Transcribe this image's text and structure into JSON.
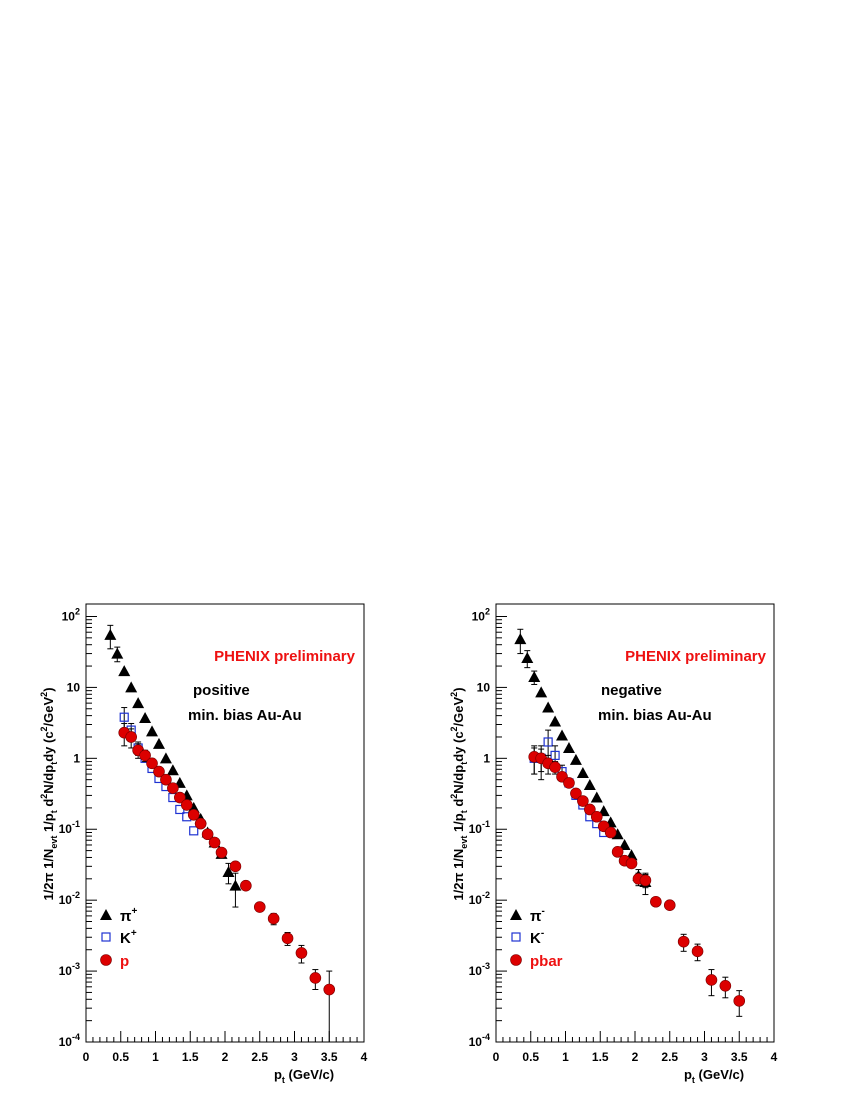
{
  "chart_data": [
    {
      "type": "scatter",
      "xlabel": "p",
      "xlabel_sub": "t",
      "xlabel_unit": "(GeV/c)",
      "xlim": [
        0,
        4
      ],
      "ylim": [
        0.0001,
        150
      ],
      "yscale": "log",
      "x_ticks": [
        "0",
        "0.5",
        "1",
        "1.5",
        "2",
        "2.5",
        "3",
        "3.5",
        "4"
      ],
      "y_ticks": [
        {
          "base": "10",
          "exp": "-4"
        },
        {
          "base": "10",
          "exp": "-3"
        },
        {
          "base": "10",
          "exp": "-2"
        },
        {
          "base": "10",
          "exp": "-1"
        },
        {
          "base": "1",
          "exp": ""
        },
        {
          "base": "10",
          "exp": ""
        },
        {
          "base": "10",
          "exp": "2"
        }
      ],
      "annotations": [
        "PHENIX preliminary",
        "positive",
        "min. bias Au-Au"
      ],
      "legend": [
        "π",
        "K",
        "p"
      ],
      "legend_sup": [
        "+",
        "+",
        ""
      ],
      "series": [
        {
          "name": "π+",
          "marker": "triangle",
          "color": "#000000",
          "x": [
            0.35,
            0.45,
            0.55,
            0.65,
            0.75,
            0.85,
            0.95,
            1.05,
            1.15,
            1.25,
            1.35,
            1.45,
            1.55,
            1.65,
            1.75,
            1.85,
            1.95,
            2.05,
            2.15
          ],
          "y": [
            55,
            30,
            17,
            10,
            6,
            3.7,
            2.4,
            1.6,
            1.0,
            0.68,
            0.45,
            0.3,
            0.2,
            0.14,
            0.09,
            0.065,
            0.045,
            0.025,
            0.016
          ],
          "err": [
            20,
            7,
            0,
            0,
            0,
            0,
            0,
            0,
            0,
            0,
            0,
            0,
            0,
            0,
            0,
            0,
            0,
            0.008,
            0.008
          ]
        },
        {
          "name": "K+",
          "marker": "open-square",
          "color": "#1e32d2",
          "x": [
            0.55,
            0.65,
            0.75,
            0.85,
            0.95,
            1.05,
            1.15,
            1.25,
            1.35,
            1.45,
            1.55
          ],
          "y": [
            3.8,
            2.5,
            1.4,
            1.0,
            0.72,
            0.52,
            0.4,
            0.28,
            0.19,
            0.15,
            0.095
          ],
          "err": [
            1.4,
            0.6,
            0.3,
            0,
            0,
            0,
            0,
            0,
            0,
            0,
            0
          ]
        },
        {
          "name": "p",
          "marker": "circle",
          "color": "#dc0000",
          "x": [
            0.55,
            0.65,
            0.75,
            0.85,
            0.95,
            1.05,
            1.15,
            1.25,
            1.35,
            1.45,
            1.55,
            1.65,
            1.75,
            1.85,
            1.95,
            2.15,
            2.3,
            2.5,
            2.7,
            2.9,
            3.1,
            3.3,
            3.5
          ],
          "y": [
            2.3,
            2.0,
            1.3,
            1.1,
            0.85,
            0.65,
            0.5,
            0.38,
            0.28,
            0.22,
            0.16,
            0.12,
            0.085,
            0.065,
            0.047,
            0.03,
            0.016,
            0.008,
            0.0055,
            0.0029,
            0.0018,
            0.0008,
            0.00055
          ],
          "err": [
            0.8,
            0.6,
            0.3,
            0.2,
            0,
            0,
            0,
            0,
            0,
            0,
            0,
            0,
            0,
            0,
            0,
            0,
            0,
            0.001,
            0.001,
            0.0006,
            0.0005,
            0.00025,
            0.00045
          ]
        }
      ]
    },
    {
      "type": "scatter",
      "xlabel": "p",
      "xlabel_sub": "t",
      "xlabel_unit": "(GeV/c)",
      "xlim": [
        0,
        4
      ],
      "ylim": [
        0.0001,
        150
      ],
      "yscale": "log",
      "x_ticks": [
        "0",
        "0.5",
        "1",
        "1.5",
        "2",
        "2.5",
        "3",
        "3.5",
        "4"
      ],
      "y_ticks": [
        {
          "base": "10",
          "exp": "-4"
        },
        {
          "base": "10",
          "exp": "-3"
        },
        {
          "base": "10",
          "exp": "-2"
        },
        {
          "base": "10",
          "exp": "-1"
        },
        {
          "base": "1",
          "exp": ""
        },
        {
          "base": "10",
          "exp": ""
        },
        {
          "base": "10",
          "exp": "2"
        }
      ],
      "annotations": [
        "PHENIX preliminary",
        "negative",
        "min. bias Au-Au"
      ],
      "legend": [
        "π",
        "K",
        "pbar"
      ],
      "legend_sup": [
        "-",
        "-",
        ""
      ],
      "series": [
        {
          "name": "π-",
          "marker": "triangle",
          "color": "#000000",
          "x": [
            0.35,
            0.45,
            0.55,
            0.65,
            0.75,
            0.85,
            0.95,
            1.05,
            1.15,
            1.25,
            1.35,
            1.45,
            1.55,
            1.65,
            1.75,
            1.85,
            1.95,
            2.05,
            2.15
          ],
          "y": [
            48,
            26,
            14,
            8.5,
            5.2,
            3.3,
            2.1,
            1.4,
            0.95,
            0.62,
            0.42,
            0.28,
            0.18,
            0.125,
            0.085,
            0.06,
            0.043,
            0.022,
            0.018
          ],
          "err": [
            18,
            7,
            3,
            0,
            0,
            0,
            0,
            0,
            0,
            0,
            0,
            0,
            0,
            0,
            0,
            0,
            0,
            0.005,
            0.006
          ]
        },
        {
          "name": "K-",
          "marker": "open-square",
          "color": "#1e32d2",
          "x": [
            0.55,
            0.65,
            0.75,
            0.85,
            0.95,
            1.05,
            1.15,
            1.25,
            1.35,
            1.45,
            1.55
          ],
          "y": [
            1.0,
            1.0,
            1.7,
            1.1,
            0.65,
            0.45,
            0.3,
            0.22,
            0.15,
            0.12,
            0.09
          ],
          "err": [
            0.4,
            0.5,
            0.8,
            0.4,
            0.15,
            0,
            0,
            0,
            0,
            0,
            0
          ]
        },
        {
          "name": "pbar",
          "marker": "circle",
          "color": "#dc0000",
          "x": [
            0.55,
            0.65,
            0.75,
            0.85,
            0.95,
            1.05,
            1.15,
            1.25,
            1.35,
            1.45,
            1.55,
            1.65,
            1.75,
            1.85,
            1.95,
            2.05,
            2.15,
            2.3,
            2.5,
            2.7,
            2.9,
            3.1,
            3.3,
            3.5
          ],
          "y": [
            1.05,
            1.0,
            0.85,
            0.75,
            0.55,
            0.45,
            0.32,
            0.25,
            0.19,
            0.15,
            0.11,
            0.09,
            0.048,
            0.036,
            0.033,
            0.02,
            0.019,
            0.0095,
            0.0085,
            0.0026,
            0.0019,
            0.00075,
            0.00062,
            0.00038
          ],
          "err": [
            0.45,
            0.35,
            0.25,
            0.15,
            0,
            0,
            0,
            0,
            0,
            0,
            0,
            0,
            0,
            0,
            0,
            0.004,
            0.004,
            0.0012,
            0.001,
            0.0007,
            0.0005,
            0.0003,
            0.0002,
            0.00015
          ]
        }
      ]
    }
  ],
  "ylabel_parts": [
    "1/2π 1/N",
    "evt",
    " 1/p",
    "t",
    " d",
    "2",
    "N/dp",
    "t",
    "dy (c",
    "2",
    "/GeV",
    "2",
    ")"
  ]
}
